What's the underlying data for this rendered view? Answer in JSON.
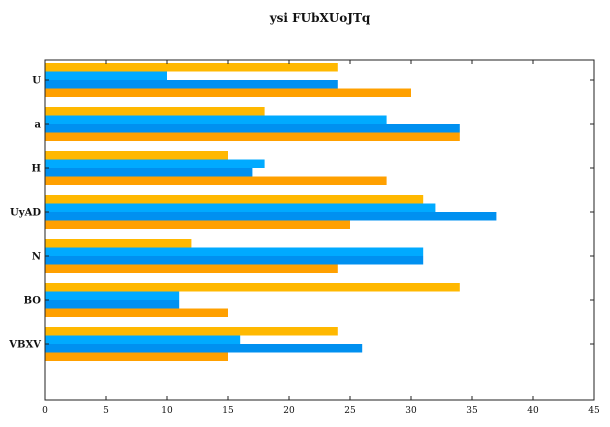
{
  "chart_data": {
    "type": "bar",
    "orientation": "horizontal",
    "title": "ysi FUbXUoJTq",
    "xlabel": "",
    "ylabel": "",
    "xlim": [
      0,
      45
    ],
    "xticks": [
      "0",
      "5",
      "10",
      "15",
      "20",
      "25",
      "30",
      "35",
      "40",
      "45"
    ],
    "categories": [
      "U",
      "a",
      "H",
      "UyAD",
      "N",
      "BO",
      "VBXV"
    ],
    "grid": false,
    "legend": "none",
    "series": [
      {
        "values": [
          24,
          18,
          15,
          31,
          12,
          34,
          24
        ],
        "color": "#FFB800"
      },
      {
        "values": [
          10,
          28,
          18,
          32,
          31,
          11,
          16
        ],
        "color": "#00AAFF"
      },
      {
        "values": [
          24,
          34,
          17,
          37,
          31,
          11,
          26
        ],
        "color": "#0090F0"
      },
      {
        "values": [
          30,
          34,
          28,
          25,
          24,
          15,
          15
        ],
        "color": "#FFA000"
      }
    ]
  }
}
